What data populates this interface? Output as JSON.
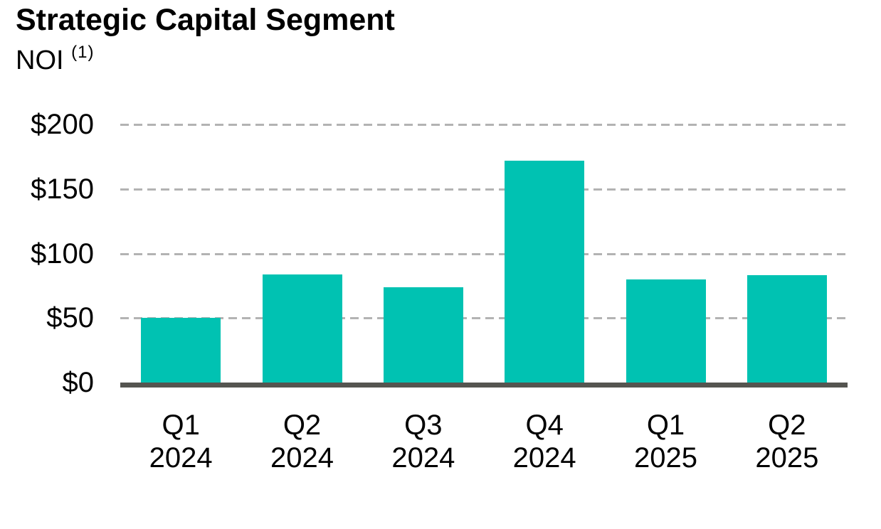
{
  "header": {
    "title": "Strategic Capital Segment",
    "subtitle_text": "NOI",
    "subtitle_superscript": "(1)"
  },
  "chart_data": {
    "type": "bar",
    "title": "Strategic Capital Segment",
    "subtitle": "NOI (1)",
    "categories": [
      "Q1 2024",
      "Q2 2024",
      "Q3 2024",
      "Q4 2024",
      "Q1 2025",
      "Q2 2025"
    ],
    "values": [
      50,
      84,
      74,
      172,
      80,
      83
    ],
    "xlabel": "",
    "ylabel": "",
    "ylim": [
      0,
      200
    ],
    "y_ticks": [
      {
        "label": "$200",
        "value": 200
      },
      {
        "label": "$150",
        "value": 150
      },
      {
        "label": "$100",
        "value": 100
      },
      {
        "label": "$50",
        "value": 50
      },
      {
        "label": "$0",
        "value": 0
      }
    ],
    "grid": "horizontal-dashed",
    "legend": "none",
    "colors": {
      "bar": "#00c2b2",
      "axis_line": "#555550",
      "gridline": "#b3b3b3",
      "text": "#000000"
    }
  }
}
